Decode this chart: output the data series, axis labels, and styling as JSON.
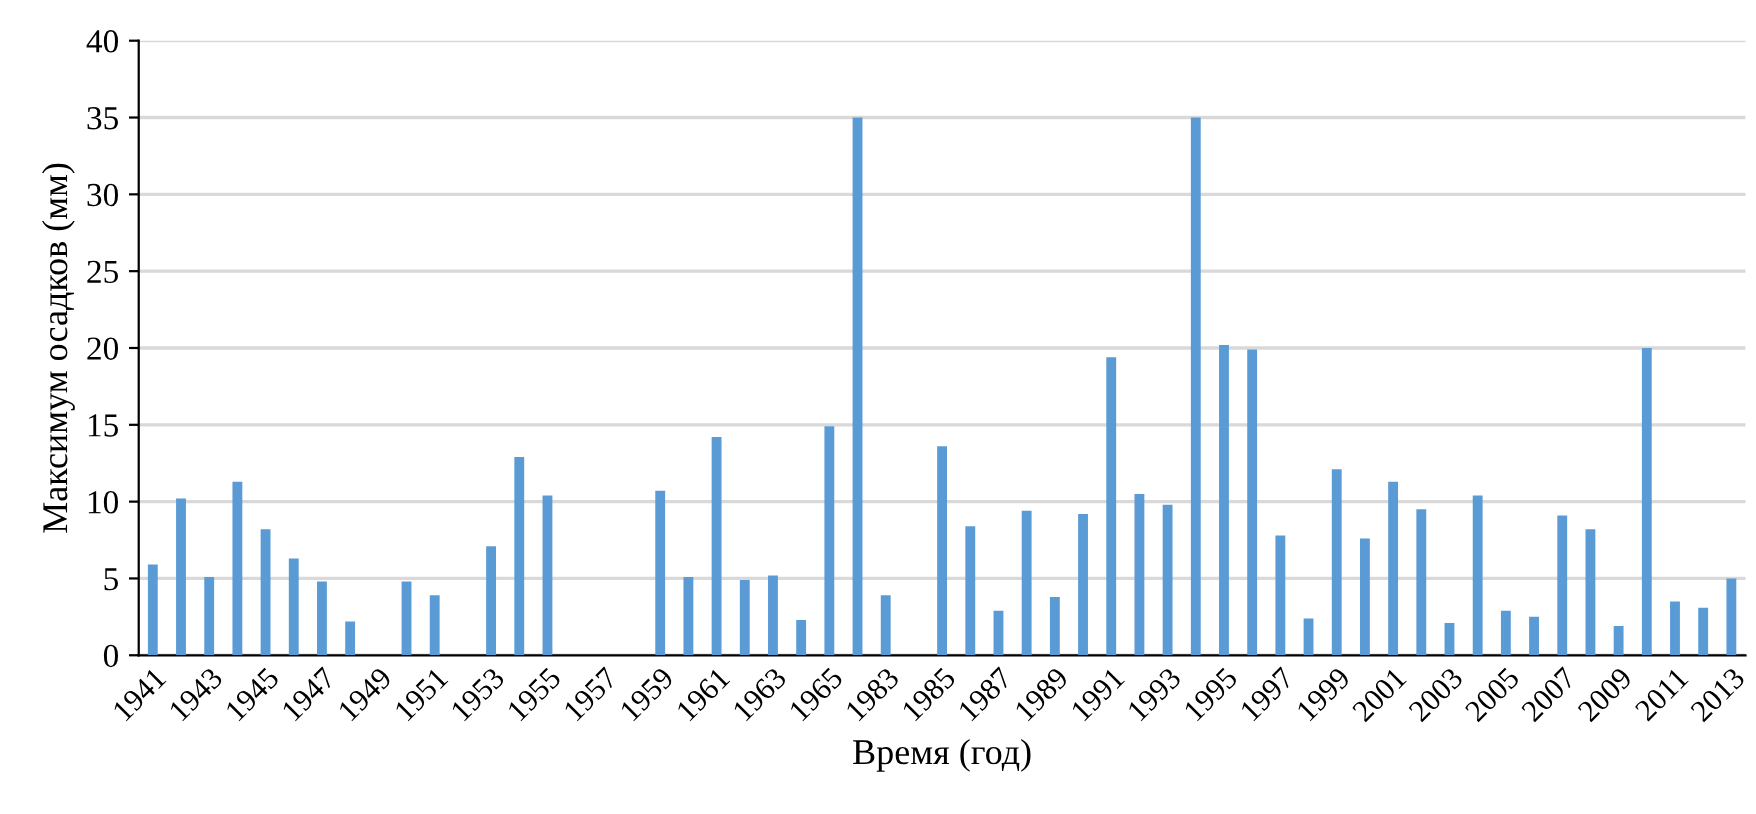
{
  "chart_data": {
    "type": "bar",
    "xlabel": "Время (год)",
    "ylabel": "Максимум осадков (мм)",
    "categories": [
      "1941",
      null,
      "1943",
      null,
      "1945",
      null,
      "1947",
      null,
      "1949",
      null,
      "1951",
      null,
      "1953",
      null,
      "1955",
      null,
      "1957",
      null,
      "1959",
      null,
      "1961",
      null,
      "1963",
      null,
      "1965",
      null,
      "1983",
      null,
      "1985",
      null,
      "1987",
      null,
      "1989",
      null,
      "1991",
      null,
      "1993",
      null,
      "1995",
      null,
      "1997",
      null,
      "1999",
      null,
      "2001",
      null,
      "2003",
      null,
      "2005",
      null,
      "2007",
      null,
      "2009",
      null,
      "2011",
      null,
      "2013"
    ],
    "values": [
      5.9,
      10.2,
      5.1,
      11.3,
      8.2,
      6.3,
      4.8,
      2.2,
      null,
      4.8,
      3.9,
      null,
      7.1,
      12.9,
      10.4,
      null,
      null,
      null,
      10.7,
      5.1,
      14.2,
      4.9,
      5.2,
      2.3,
      14.9,
      35,
      3.9,
      null,
      13.6,
      8.4,
      2.9,
      9.4,
      3.8,
      9.2,
      19.4,
      10.5,
      9.8,
      35,
      20.2,
      19.9,
      7.8,
      2.4,
      12.1,
      7.6,
      11.3,
      9.5,
      2.1,
      10.4,
      2.9,
      2.5,
      9.1,
      8.2,
      1.9,
      20,
      3.5,
      3.1,
      5.0
    ],
    "color": "#5b9bd5",
    "ylim": [
      0,
      40
    ],
    "yticks": [
      0,
      5,
      10,
      15,
      20,
      25,
      30,
      35,
      40
    ],
    "grid": "y"
  }
}
